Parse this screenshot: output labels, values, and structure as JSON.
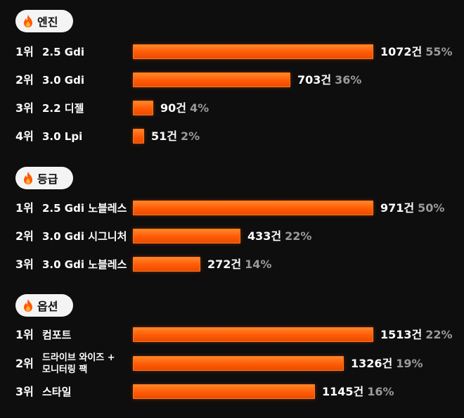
{
  "chart_data": [
    {
      "type": "bar",
      "title": "엔진",
      "ranks": [
        "1위",
        "2위",
        "3위",
        "4위"
      ],
      "categories": [
        "2.5 Gdi",
        "3.0 Gdi",
        "2.2 디젤",
        "3.0 Lpi"
      ],
      "values": [
        1072,
        703,
        90,
        51
      ],
      "percents": [
        55,
        36,
        4,
        2
      ],
      "count_labels": [
        "1072건",
        "703건",
        "90건",
        "51건"
      ],
      "percent_labels": [
        "55%",
        "36%",
        "4%",
        "2%"
      ],
      "xlim": [
        0,
        1072
      ]
    },
    {
      "type": "bar",
      "title": "등급",
      "ranks": [
        "1위",
        "2위",
        "3위"
      ],
      "categories": [
        "2.5 Gdi 노블레스",
        "3.0 Gdi 시그니처",
        "3.0 Gdi 노블레스"
      ],
      "values": [
        971,
        433,
        272
      ],
      "percents": [
        50,
        22,
        14
      ],
      "count_labels": [
        "971건",
        "433건",
        "272건"
      ],
      "percent_labels": [
        "50%",
        "22%",
        "14%"
      ],
      "xlim": [
        0,
        971
      ]
    },
    {
      "type": "bar",
      "title": "옵션",
      "ranks": [
        "1위",
        "2위",
        "3위"
      ],
      "categories": [
        "컴포트",
        "드라이브 와이즈 + 모니터링 팩",
        "스타일"
      ],
      "category_lines": [
        [
          "컴포트"
        ],
        [
          "드라이브 와이즈 +",
          "모니터링 팩"
        ],
        [
          "스타일"
        ]
      ],
      "values": [
        1513,
        1326,
        1145
      ],
      "percents": [
        22,
        19,
        16
      ],
      "count_labels": [
        "1513건",
        "1326건",
        "1145건"
      ],
      "percent_labels": [
        "22%",
        "19%",
        "16%"
      ],
      "xlim": [
        0,
        1513
      ]
    }
  ],
  "colors": {
    "background": "#0e0e0e",
    "bar": "#ff5a06",
    "count_text": "#ffffff",
    "percent_text": "#9a9a9a",
    "pill_background": "#f4f4f4"
  },
  "icons": {
    "section": "fire-icon"
  }
}
